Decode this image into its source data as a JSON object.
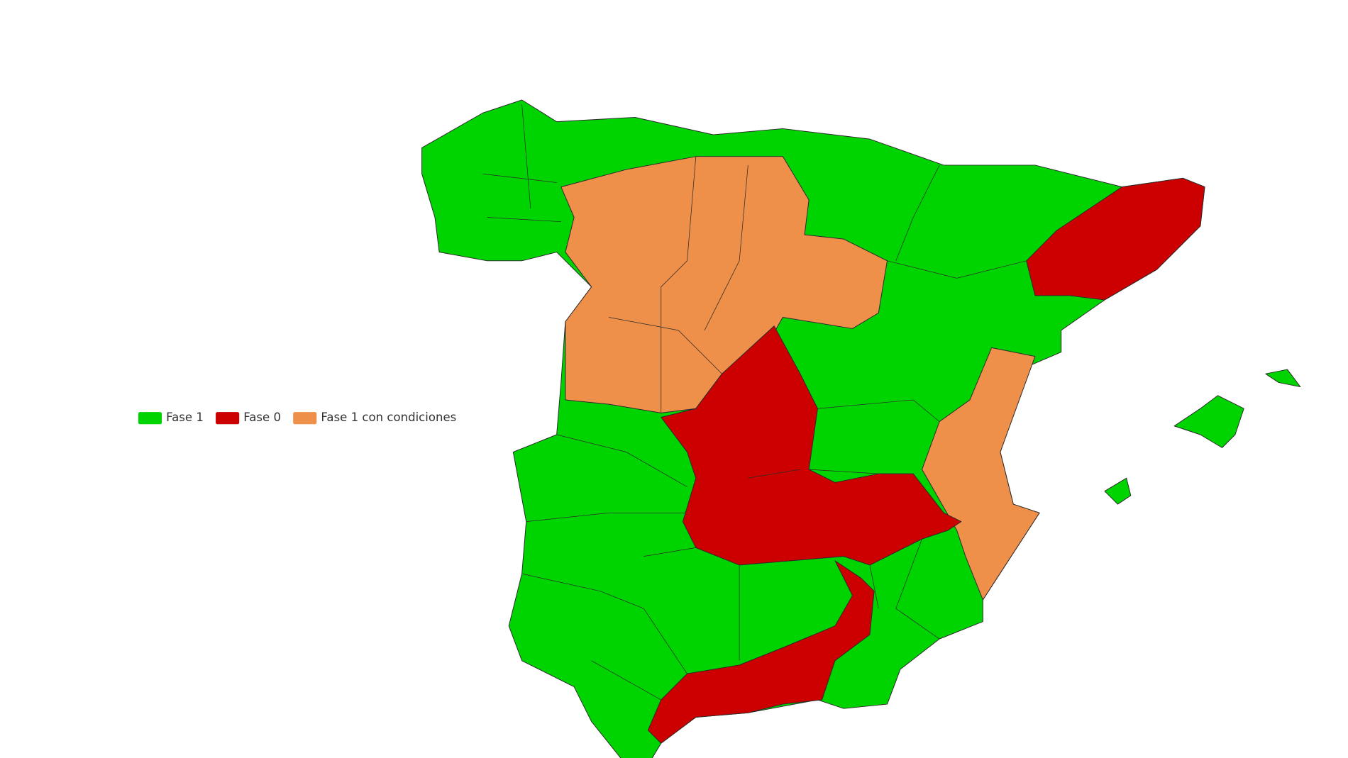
{
  "legend": {
    "items": [
      {
        "label": "Fase 1",
        "color": "#00d400"
      },
      {
        "label": "Fase 0",
        "color": "#cc0000"
      },
      {
        "label": "Fase 1 con condiciones",
        "color": "#ee8f4a"
      }
    ]
  }
}
